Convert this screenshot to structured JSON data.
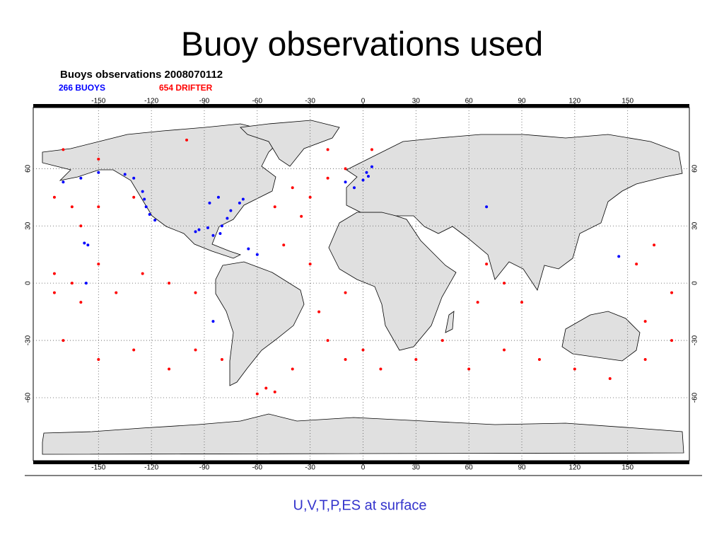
{
  "slide": {
    "title": "Buoy observations used",
    "caption": "U,V,T,P,ES at surface"
  },
  "chart_data": {
    "type": "scatter",
    "title": "Buoys observations 2008070112",
    "xlim": [
      -187,
      185
    ],
    "ylim": [
      -93,
      92
    ],
    "xticks": [
      -150,
      -120,
      -90,
      -60,
      -30,
      0,
      30,
      60,
      90,
      120,
      150
    ],
    "yticks": [
      -60,
      -30,
      0,
      30,
      60
    ],
    "grid": true,
    "series": [
      {
        "name": "266 BUOYS",
        "color": "#0000ff",
        "lon": [
          -125,
          -124,
          -123,
          -121,
          -118,
          -130,
          -135,
          -150,
          -160,
          -170,
          -158,
          -156,
          -70,
          -75,
          -77,
          -80,
          -81,
          -88,
          -93,
          -95,
          -85,
          -65,
          -60,
          -68,
          -82,
          -87,
          -5,
          0,
          3,
          2,
          -10,
          5,
          70,
          145,
          -85,
          -157
        ],
        "lat": [
          48,
          44,
          40,
          36,
          33,
          55,
          57,
          58,
          55,
          53,
          21,
          20,
          42,
          38,
          34,
          30,
          26,
          29,
          28,
          27,
          25,
          18,
          15,
          44,
          45,
          42,
          50,
          54,
          56,
          58,
          53,
          61,
          40,
          14,
          -20,
          0
        ]
      },
      {
        "name": "654 DRIFTER",
        "color": "#ff0000",
        "lon": [
          -175,
          -175,
          -165,
          -160,
          -150,
          -140,
          -125,
          -110,
          -95,
          -170,
          -150,
          -130,
          -110,
          -95,
          -80,
          -60,
          -55,
          -50,
          -40,
          -20,
          -10,
          0,
          10,
          30,
          45,
          60,
          80,
          100,
          120,
          140,
          160,
          175,
          70,
          80,
          65,
          90,
          155,
          165,
          -160,
          -150,
          -130,
          -40,
          -30,
          -20,
          -35,
          -50,
          -10,
          -150,
          -170,
          -100,
          -20,
          5,
          -45,
          -30,
          -10,
          -25,
          175,
          160,
          -175,
          -165
        ],
        "lat": [
          -5,
          5,
          0,
          -10,
          10,
          -5,
          5,
          0,
          -5,
          -30,
          -40,
          -35,
          -45,
          -35,
          -40,
          -58,
          -55,
          -57,
          -45,
          -30,
          -40,
          -35,
          -45,
          -40,
          -30,
          -45,
          -35,
          -40,
          -45,
          -50,
          -40,
          -30,
          10,
          0,
          -10,
          -10,
          10,
          20,
          30,
          40,
          45,
          50,
          45,
          55,
          35,
          40,
          60,
          65,
          70,
          75,
          70,
          70,
          20,
          10,
          -5,
          -15,
          -5,
          -20,
          45,
          40
        ]
      }
    ]
  }
}
